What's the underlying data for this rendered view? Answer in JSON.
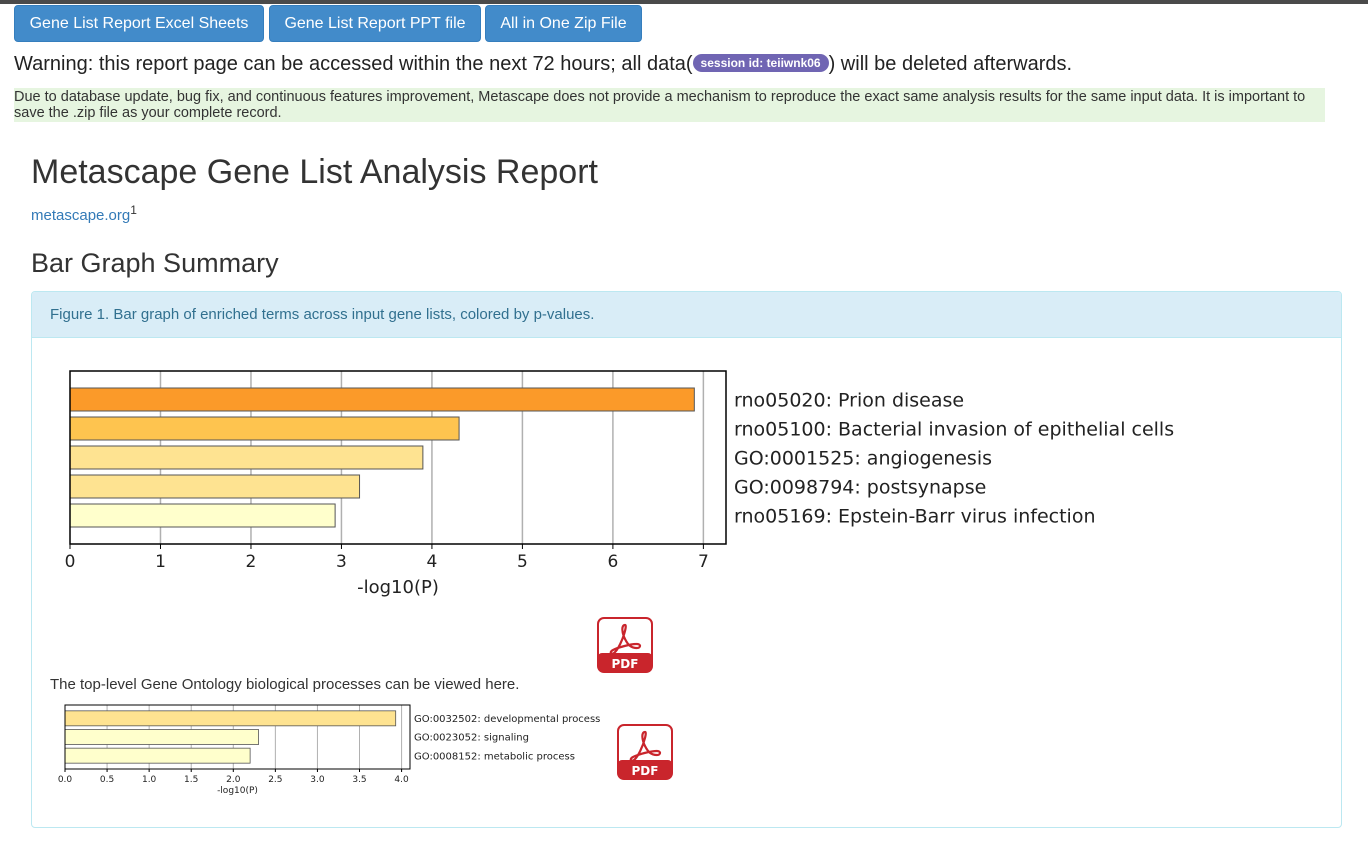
{
  "toolbar": {
    "excel_label": "Gene List Report Excel Sheets",
    "ppt_label": "Gene List Report PPT file",
    "zip_label": "All in One Zip File"
  },
  "warning": {
    "prefix": "Warning: this report page can be accessed within the next 72 hours; all data(",
    "session": "session id: teiiwnk06",
    "suffix": ") will be deleted afterwards."
  },
  "note": "Due to database update, bug fix, and continuous features improvement, Metascape does not provide a mechanism to reproduce the exact same analysis results for the same input data. It is important to save the .zip file as your complete record.",
  "report": {
    "title": "Metascape Gene List Analysis Report",
    "site_link": "metascape.org",
    "site_sup": "1",
    "section_title": "Bar Graph Summary",
    "figure_caption": "Figure 1. Bar graph of enriched terms across input gene lists, colored by p-values.",
    "toplevel_text": "The top-level Gene Ontology biological processes can be viewed here.",
    "pdf_label": "PDF"
  },
  "colors": {
    "button": "#428bca",
    "badge": "#7065b3",
    "note_bg": "#e6f5e0",
    "panel_head_bg": "#d9edf7",
    "pdf_red": "#c9252c"
  },
  "chart_data": [
    {
      "type": "bar",
      "orientation": "horizontal",
      "categories": [
        "rno05020: Prion disease",
        "rno05100: Bacterial invasion of epithelial cells",
        "GO:0001525: angiogenesis",
        "GO:0098794: postsynapse",
        "rno05169: Epstein-Barr virus infection"
      ],
      "values": [
        6.9,
        4.3,
        3.9,
        3.2,
        2.93
      ],
      "colors": [
        "#fb9a29",
        "#fec44f",
        "#fee391",
        "#fee391",
        "#ffffcc"
      ],
      "xlabel": "-log10(P)",
      "ticks": [
        0,
        1,
        2,
        3,
        4,
        5,
        6,
        7
      ],
      "tick_labels": [
        "0",
        "1",
        "2",
        "3",
        "4",
        "5",
        "6",
        "7"
      ],
      "xlim": [
        0,
        7.25
      ],
      "grid": true,
      "legend": "none"
    },
    {
      "type": "bar",
      "orientation": "horizontal",
      "categories": [
        "GO:0032502: developmental process",
        "GO:0023052: signaling",
        "GO:0008152: metabolic process"
      ],
      "values": [
        3.93,
        2.3,
        2.2
      ],
      "colors": [
        "#fee391",
        "#ffffcc",
        "#ffffcc"
      ],
      "xlabel": "-log10(P)",
      "ticks": [
        0,
        0.5,
        1,
        1.5,
        2,
        2.5,
        3,
        3.5,
        4
      ],
      "tick_labels": [
        "0.0",
        "0.5",
        "1.0",
        "1.5",
        "2.0",
        "2.5",
        "3.0",
        "3.5",
        "4.0"
      ],
      "xlim": [
        0,
        4.1
      ],
      "grid": true,
      "legend": "none"
    }
  ]
}
